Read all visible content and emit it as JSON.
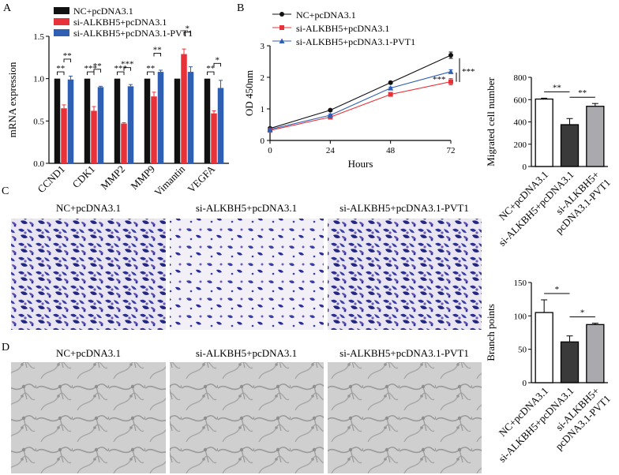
{
  "panels": {
    "A": "A",
    "B": "B",
    "C": "C",
    "D": "D"
  },
  "colors": {
    "black": "#111111",
    "red": "#e8323a",
    "blue": "#2f5fb3",
    "dark_gray": "#3a3a3a",
    "light_gray": "#a9a9ae",
    "white": "#ffffff"
  },
  "chart_data": [
    {
      "id": "A",
      "type": "bar",
      "ylabel": "mRNA expression",
      "ylim": [
        0,
        1.5
      ],
      "yticks": [
        "0.0",
        "0.5",
        "1.0",
        "1.5"
      ],
      "categories": [
        "CCND1",
        "CDK1",
        "MMP2",
        "MMP9",
        "Vimantin",
        "VEGFA"
      ],
      "legend_position": "top-left",
      "series": [
        {
          "name": "NC+pcDNA3.1",
          "color": "#111111",
          "values": [
            1.0,
            1.0,
            1.0,
            1.0,
            1.0,
            1.0
          ],
          "errors": [
            0,
            0,
            0,
            0,
            0,
            0
          ]
        },
        {
          "name": "si-ALKBH5+pcDNA3.1",
          "color": "#e8323a",
          "values": [
            0.65,
            0.62,
            0.47,
            0.79,
            1.29,
            0.59
          ],
          "errors": [
            0.04,
            0.05,
            0.01,
            0.05,
            0.06,
            0.03
          ]
        },
        {
          "name": "si-ALKBH5+pcDNA3.1-PVT1",
          "color": "#2f5fb3",
          "values": [
            0.99,
            0.9,
            0.91,
            1.08,
            1.08,
            0.89
          ],
          "errors": [
            0.04,
            0.01,
            0.02,
            0.02,
            0.06,
            0.09
          ]
        }
      ],
      "significance": [
        {
          "category": 0,
          "left": "**",
          "right": "**"
        },
        {
          "category": 1,
          "left": "***",
          "right": "**"
        },
        {
          "category": 2,
          "left": "***",
          "right": "***"
        },
        {
          "category": 3,
          "left": "**",
          "right": "**"
        },
        {
          "category": 4,
          "left": "",
          "right": "*"
        },
        {
          "category": 5,
          "left": "**",
          "right": "*"
        }
      ]
    },
    {
      "id": "B",
      "type": "line",
      "ylabel": "OD 450nm",
      "xlabel": "Hours",
      "x": [
        0,
        24,
        48,
        72
      ],
      "xticks": [
        "0",
        "24",
        "48",
        "72"
      ],
      "ylim": [
        0,
        3
      ],
      "yticks": [
        "0",
        "1",
        "2",
        "3"
      ],
      "legend_position": "top-left",
      "series": [
        {
          "name": "NC+pcDNA3.1",
          "color": "#111111",
          "marker": "circle",
          "values": [
            0.38,
            0.96,
            1.83,
            2.7
          ],
          "errors": [
            0.02,
            0.03,
            0.03,
            0.1
          ]
        },
        {
          "name": "si-ALKBH5+pcDNA3.1",
          "color": "#e8323a",
          "marker": "square",
          "values": [
            0.32,
            0.74,
            1.46,
            1.86
          ],
          "errors": [
            0.02,
            0.06,
            0.03,
            0.1
          ]
        },
        {
          "name": "si-ALKBH5+pcDNA3.1-PVT1",
          "color": "#2f5fb3",
          "marker": "triangle",
          "values": [
            0.35,
            0.8,
            1.66,
            2.18
          ],
          "errors": [
            0.02,
            0.04,
            0.03,
            0.06
          ]
        }
      ],
      "significance": [
        {
          "between": [
            0,
            1
          ],
          "label": "***"
        },
        {
          "between": [
            1,
            2
          ],
          "label": "***"
        }
      ]
    },
    {
      "id": "migration",
      "type": "bar",
      "ylabel": "Migrated cell number",
      "ylim": [
        0,
        800
      ],
      "yticks": [
        "0",
        "200",
        "400",
        "600",
        "800"
      ],
      "categories": [
        "NC+pcDNA3.1",
        "si-ALKBH5+pcDNA3.1",
        "si-ALKBH5+ pcDNA3.1-PVT1"
      ],
      "category_lines": [
        [
          "NC+pcDNA3.1"
        ],
        [
          "si-ALKBH5+pcDNA3.1"
        ],
        [
          "si-ALKBH5+",
          "pcDNA3.1-PVT1"
        ]
      ],
      "values": [
        605,
        375,
        540
      ],
      "errors": [
        8,
        55,
        25
      ],
      "fills": [
        "#ffffff",
        "#3a3a3a",
        "#a9a9ae"
      ],
      "significance": [
        {
          "between": [
            0,
            1
          ],
          "label": "**"
        },
        {
          "between": [
            1,
            2
          ],
          "label": "**"
        }
      ]
    },
    {
      "id": "branch",
      "type": "bar",
      "ylabel": "Branch points",
      "ylim": [
        0,
        150
      ],
      "yticks": [
        "0",
        "50",
        "100",
        "150"
      ],
      "categories": [
        "NC+pcDNA3.1",
        "si-ALKBH5+pcDNA3.1",
        "si-ALKBH5+ pcDNA3.1-PVT1"
      ],
      "category_lines": [
        [
          "NC+pcDNA3.1"
        ],
        [
          "si-ALKBH5+pcDNA3.1"
        ],
        [
          "si-ALKBH5+",
          "pcDNA3.1-PVT1"
        ]
      ],
      "values": [
        105,
        61,
        87
      ],
      "errors": [
        19,
        9,
        2
      ],
      "fills": [
        "#ffffff",
        "#3a3a3a",
        "#a9a9ae"
      ],
      "significance": [
        {
          "between": [
            0,
            1
          ],
          "label": "*"
        },
        {
          "between": [
            1,
            2
          ],
          "label": "*"
        }
      ]
    }
  ],
  "micrographs": {
    "C": [
      "NC+pcDNA3.1",
      "si-ALKBH5+pcDNA3.1",
      "si-ALKBH5+pcDNA3.1-PVT1"
    ],
    "D": [
      "NC+pcDNA3.1",
      "si-ALKBH5+pcDNA3.1",
      "si-ALKBH5+pcDNA3.1-PVT1"
    ]
  }
}
